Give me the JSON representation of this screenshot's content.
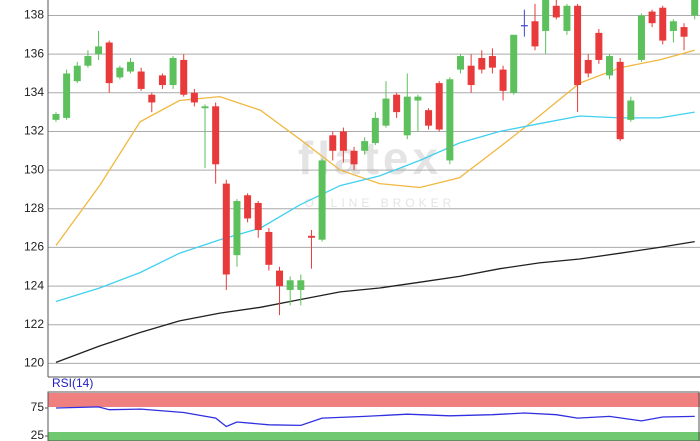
{
  "chart_data": [
    {
      "type": "candlestick",
      "annotations": [
        "flatex",
        "ONLINE BROKER"
      ],
      "up_color": "#5cc05c",
      "down_color": "#e83a3a",
      "flat_color": "#4444cc",
      "open": [
        132.6,
        132.7,
        134.6,
        135.4,
        136.0,
        136.6,
        134.8,
        135.1,
        135.1,
        133.9,
        134.9,
        134.4,
        135.7,
        134.0,
        133.2,
        133.3,
        129.3,
        125.6,
        128.7,
        128.3,
        126.8,
        124.8,
        123.8,
        123.8,
        126.6,
        126.4,
        131.8,
        132.0,
        131.0,
        131.0,
        131.4,
        132.3,
        133.9,
        131.8,
        133.6,
        133.1,
        134.5,
        130.5,
        135.2,
        135.4,
        135.8,
        135.9,
        135.2,
        134.0,
        137.5,
        137.7,
        137.2,
        138.5,
        137.2,
        138.5,
        135.7,
        137.1,
        134.9,
        135.6,
        132.6,
        135.7,
        138.2,
        138.4,
        137.2,
        137.4,
        138.0
      ],
      "high": [
        133.0,
        135.2,
        135.6,
        136.2,
        137.2,
        136.7,
        135.4,
        135.8,
        135.3,
        134.0,
        135.0,
        135.9,
        136.0,
        134.2,
        133.4,
        133.5,
        129.5,
        128.5,
        128.8,
        128.4,
        127.0,
        125.0,
        124.5,
        124.6,
        126.9,
        130.6,
        132.0,
        132.2,
        131.2,
        131.7,
        133.0,
        134.6,
        134.0,
        135.0,
        133.9,
        133.2,
        134.6,
        134.8,
        136.0,
        136.0,
        136.2,
        136.3,
        135.4,
        137.0,
        138.3,
        138.6,
        138.8,
        138.8,
        138.6,
        138.6,
        136.0,
        137.3,
        136.0,
        135.8,
        133.8,
        138.1,
        138.3,
        138.5,
        137.8,
        137.6,
        138.8
      ],
      "low": [
        132.5,
        132.6,
        134.5,
        135.3,
        135.7,
        134.0,
        134.7,
        135.0,
        134.1,
        133.0,
        134.2,
        134.2,
        133.8,
        133.3,
        130.1,
        129.3,
        123.8,
        125.0,
        127.3,
        126.5,
        124.8,
        122.5,
        123.0,
        123.0,
        124.9,
        126.3,
        130.5,
        130.4,
        130.0,
        130.8,
        131.3,
        132.2,
        132.7,
        131.6,
        132.0,
        132.1,
        132.0,
        130.3,
        135.0,
        134.0,
        135.0,
        135.0,
        133.6,
        133.9,
        136.9,
        136.2,
        136.0,
        137.8,
        137.0,
        133.0,
        134.8,
        135.5,
        134.7,
        131.5,
        132.5,
        135.6,
        137.4,
        136.5,
        136.6,
        136.2,
        137.8
      ],
      "close": [
        132.9,
        135.0,
        135.4,
        135.9,
        136.4,
        134.5,
        135.3,
        135.6,
        134.2,
        133.5,
        134.4,
        135.8,
        133.9,
        133.5,
        133.3,
        130.3,
        124.6,
        128.4,
        127.5,
        126.9,
        125.1,
        124.0,
        124.3,
        124.3,
        126.5,
        130.5,
        131.0,
        131.0,
        130.3,
        131.5,
        132.7,
        133.7,
        133.0,
        133.8,
        133.8,
        132.3,
        132.1,
        134.7,
        135.9,
        134.4,
        135.2,
        135.3,
        134.1,
        137.0,
        137.5,
        136.4,
        138.8,
        137.9,
        138.5,
        134.4,
        135.0,
        135.7,
        135.9,
        131.6,
        133.6,
        138.0,
        137.6,
        136.7,
        137.7,
        136.9,
        138.8
      ],
      "series": [
        {
          "color": "#f0b840",
          "x": [
            0,
            4.1,
            7.9,
            11.6,
            15.4,
            19.2,
            22.9,
            26.7,
            30.4,
            34.2,
            37.9,
            41.7,
            45.4,
            49.2,
            53,
            56.7,
            60
          ],
          "values": [
            126.1,
            129.2,
            132.5,
            133.6,
            133.8,
            133.1,
            131.6,
            130.0,
            129.3,
            129.1,
            129.6,
            131.2,
            132.8,
            134.5,
            135.3,
            135.7,
            136.2
          ]
        },
        {
          "color": "#40d0f0",
          "x": [
            0,
            4.1,
            7.9,
            11.6,
            15.4,
            19.2,
            22.9,
            26.7,
            30.4,
            34.2,
            37.9,
            41.7,
            45.4,
            49.2,
            53,
            56.7,
            60
          ],
          "values": [
            123.2,
            123.9,
            124.7,
            125.7,
            126.4,
            127.0,
            128.2,
            129.2,
            129.7,
            130.5,
            131.4,
            132.0,
            132.4,
            132.8,
            132.7,
            132.7,
            133.0
          ]
        },
        {
          "color": "#202020",
          "x": [
            0,
            4.1,
            7.9,
            11.6,
            15.4,
            19.2,
            22.9,
            26.7,
            30.4,
            34.2,
            37.9,
            41.7,
            45.4,
            49.2,
            53,
            56.7,
            60
          ],
          "values": [
            120.05,
            120.9,
            121.6,
            122.2,
            122.6,
            122.9,
            123.3,
            123.7,
            123.9,
            124.2,
            124.5,
            124.9,
            125.2,
            125.4,
            125.7,
            126.0,
            126.3
          ]
        }
      ],
      "xlim": [
        -0.75,
        60.5
      ],
      "ylim": [
        119.4,
        138.8
      ],
      "yticks": [
        120,
        122,
        124,
        126,
        128,
        130,
        132,
        134,
        136,
        138
      ],
      "grid": true
    },
    {
      "type": "line",
      "title": "RSI(14)",
      "x": [
        0,
        4,
        5,
        8,
        12,
        15,
        16,
        17,
        20,
        23,
        25,
        29,
        33,
        37,
        41,
        44,
        47,
        49,
        52,
        55,
        57,
        60
      ],
      "values": [
        75,
        77,
        72,
        73,
        67,
        57,
        42,
        50,
        45,
        44,
        57,
        60,
        64,
        61,
        63,
        66,
        63,
        57,
        60,
        52,
        59,
        60
      ],
      "color": "#3030e0",
      "xlim": [
        -0.75,
        60.5
      ],
      "ylim": [
        0,
        100
      ],
      "yticks": [
        75,
        25
      ]
    }
  ]
}
